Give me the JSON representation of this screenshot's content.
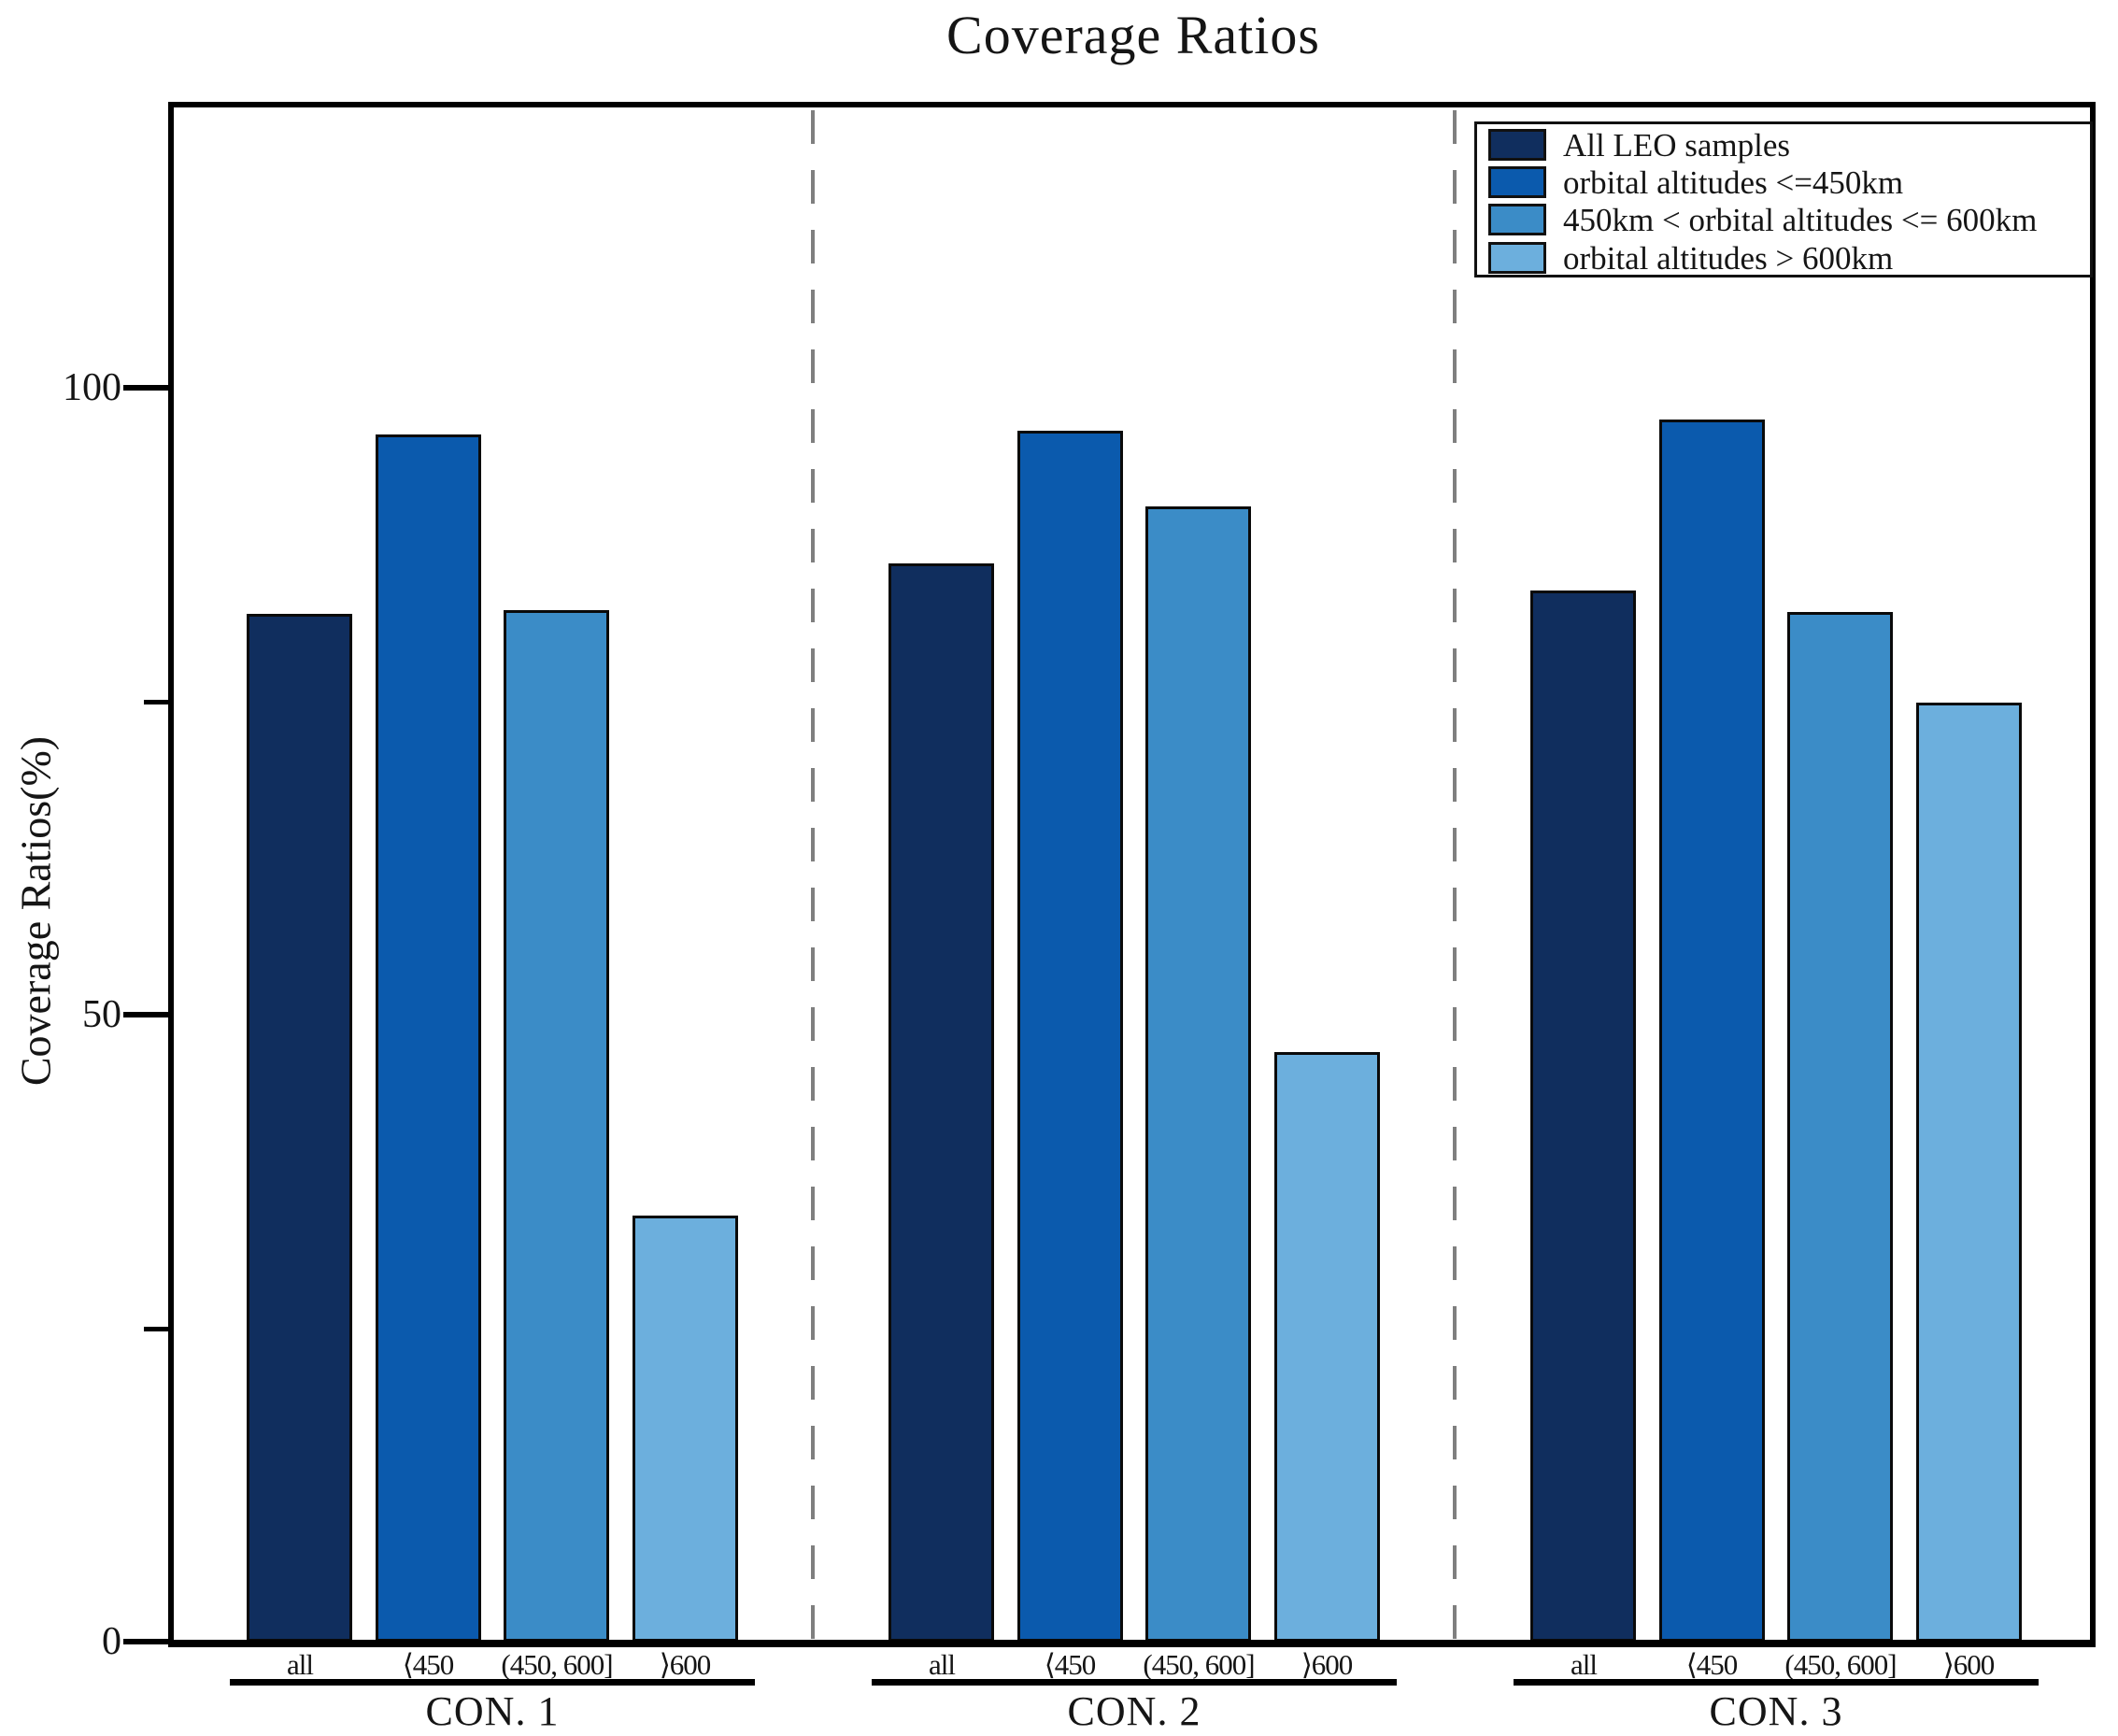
{
  "chart_data": {
    "type": "bar",
    "title": "Coverage Ratios",
    "ylabel": "Coverage Ratios(%)",
    "ylim": [
      0,
      122.5
    ],
    "grid": false,
    "legend_position": "top-right",
    "y_ticks": [
      {
        "value": 0,
        "label": "0"
      },
      {
        "value": 50,
        "label": "50"
      },
      {
        "value": 100,
        "label": "100"
      }
    ],
    "y_minor_ticks": [
      25,
      75
    ],
    "groups": [
      "CON. 1",
      "CON. 2",
      "CON. 3"
    ],
    "bar_labels": [
      "all",
      "⟨450",
      "(450, 600]",
      "⟩600"
    ],
    "series": [
      {
        "name": "All LEO samples",
        "color": "#102e5e",
        "values": [
          82.0,
          86.0,
          83.8
        ]
      },
      {
        "name": "orbital altitudes <=450km",
        "color": "#0b5aad",
        "values": [
          96.3,
          96.6,
          97.5
        ]
      },
      {
        "name": "450km < orbital altitudes <= 600km",
        "color": "#3b8cc7",
        "values": [
          82.3,
          90.5,
          82.1
        ]
      },
      {
        "name": "orbital altitudes > 600km",
        "color": "#6cafdd",
        "values": [
          34.0,
          47.0,
          74.9
        ]
      }
    ],
    "separator_color": "#7f7f7f",
    "bar_edge_color": "#0a0a0a",
    "axis_color": "#000000"
  }
}
